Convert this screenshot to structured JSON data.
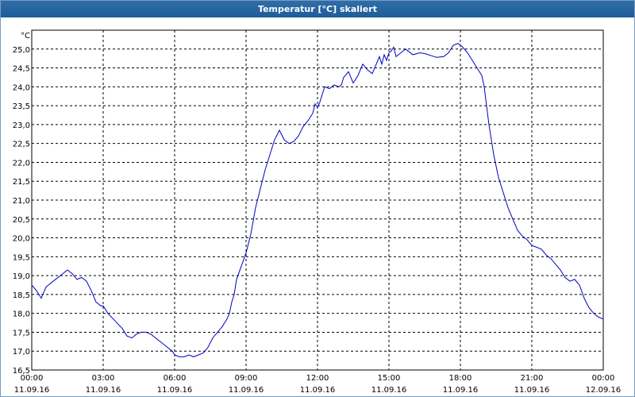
{
  "window": {
    "title": "Temperatur [°C] skaliert"
  },
  "chart_data": {
    "type": "line",
    "title": "Temperatur [°C] skaliert",
    "ylabel": "°C",
    "xlabel": "",
    "x_unit": "hours",
    "xlim": [
      0,
      24
    ],
    "ylim": [
      16.5,
      25.5
    ],
    "grid": true,
    "line_color": "#0000c0",
    "yticks": [
      "25,0",
      "24,5",
      "24,0",
      "23,5",
      "23,0",
      "22,5",
      "22,0",
      "21,5",
      "21,0",
      "20,5",
      "20,0",
      "19,5",
      "19,0",
      "18,5",
      "18,0",
      "17,5",
      "17,0",
      "16,5"
    ],
    "ytick_values": [
      25.0,
      24.5,
      24.0,
      23.5,
      23.0,
      22.5,
      22.0,
      21.5,
      21.0,
      20.5,
      20.0,
      19.5,
      19.0,
      18.5,
      18.0,
      17.5,
      17.0,
      16.5
    ],
    "xticks": [
      {
        "h": 0,
        "time": "00:00",
        "date": "11.09.16"
      },
      {
        "h": 3,
        "time": "03:00",
        "date": "11.09.16"
      },
      {
        "h": 6,
        "time": "06:00",
        "date": "11.09.16"
      },
      {
        "h": 9,
        "time": "09:00",
        "date": "11.09.16"
      },
      {
        "h": 12,
        "time": "12:00",
        "date": "11.09.16"
      },
      {
        "h": 15,
        "time": "15:00",
        "date": "11.09.16"
      },
      {
        "h": 18,
        "time": "18:00",
        "date": "11.09.16"
      },
      {
        "h": 21,
        "time": "21:00",
        "date": "11.09.16"
      },
      {
        "h": 24,
        "time": "00:00",
        "date": "12.09.16"
      }
    ],
    "series": [
      {
        "points": [
          [
            0.0,
            18.75
          ],
          [
            0.2,
            18.6
          ],
          [
            0.4,
            18.4
          ],
          [
            0.6,
            18.7
          ],
          [
            0.9,
            18.85
          ],
          [
            1.2,
            19.0
          ],
          [
            1.5,
            19.15
          ],
          [
            1.7,
            19.05
          ],
          [
            1.9,
            18.9
          ],
          [
            2.1,
            18.95
          ],
          [
            2.3,
            18.85
          ],
          [
            2.5,
            18.6
          ],
          [
            2.7,
            18.3
          ],
          [
            2.9,
            18.2
          ],
          [
            3.0,
            18.2
          ],
          [
            3.2,
            18.0
          ],
          [
            3.5,
            17.8
          ],
          [
            3.8,
            17.6
          ],
          [
            4.0,
            17.4
          ],
          [
            4.2,
            17.35
          ],
          [
            4.4,
            17.45
          ],
          [
            4.6,
            17.5
          ],
          [
            4.8,
            17.5
          ],
          [
            5.0,
            17.45
          ],
          [
            5.3,
            17.3
          ],
          [
            5.6,
            17.15
          ],
          [
            5.9,
            17.0
          ],
          [
            6.0,
            16.9
          ],
          [
            6.2,
            16.85
          ],
          [
            6.4,
            16.85
          ],
          [
            6.6,
            16.9
          ],
          [
            6.8,
            16.85
          ],
          [
            7.0,
            16.9
          ],
          [
            7.2,
            16.95
          ],
          [
            7.4,
            17.1
          ],
          [
            7.6,
            17.35
          ],
          [
            7.8,
            17.5
          ],
          [
            8.0,
            17.65
          ],
          [
            8.2,
            17.85
          ],
          [
            8.3,
            18.0
          ],
          [
            8.4,
            18.3
          ],
          [
            8.5,
            18.5
          ],
          [
            8.6,
            18.9
          ],
          [
            8.8,
            19.25
          ],
          [
            9.0,
            19.6
          ],
          [
            9.2,
            20.1
          ],
          [
            9.4,
            20.8
          ],
          [
            9.6,
            21.3
          ],
          [
            9.8,
            21.8
          ],
          [
            10.0,
            22.2
          ],
          [
            10.2,
            22.6
          ],
          [
            10.4,
            22.85
          ],
          [
            10.6,
            22.6
          ],
          [
            10.8,
            22.5
          ],
          [
            11.0,
            22.55
          ],
          [
            11.2,
            22.7
          ],
          [
            11.4,
            22.95
          ],
          [
            11.6,
            23.1
          ],
          [
            11.8,
            23.3
          ],
          [
            11.9,
            23.55
          ],
          [
            12.0,
            23.45
          ],
          [
            12.1,
            23.6
          ],
          [
            12.3,
            24.0
          ],
          [
            12.5,
            23.95
          ],
          [
            12.7,
            24.05
          ],
          [
            12.9,
            24.0
          ],
          [
            13.0,
            24.05
          ],
          [
            13.1,
            24.25
          ],
          [
            13.3,
            24.4
          ],
          [
            13.5,
            24.1
          ],
          [
            13.7,
            24.3
          ],
          [
            13.9,
            24.6
          ],
          [
            14.1,
            24.45
          ],
          [
            14.3,
            24.35
          ],
          [
            14.5,
            24.65
          ],
          [
            14.6,
            24.8
          ],
          [
            14.7,
            24.6
          ],
          [
            14.8,
            24.85
          ],
          [
            14.9,
            24.7
          ],
          [
            15.0,
            24.9
          ],
          [
            15.1,
            24.95
          ],
          [
            15.2,
            25.05
          ],
          [
            15.3,
            24.8
          ],
          [
            15.5,
            24.9
          ],
          [
            15.7,
            25.0
          ],
          [
            15.8,
            24.95
          ],
          [
            16.0,
            24.85
          ],
          [
            16.3,
            24.9
          ],
          [
            16.5,
            24.88
          ],
          [
            16.8,
            24.82
          ],
          [
            17.0,
            24.78
          ],
          [
            17.3,
            24.8
          ],
          [
            17.5,
            24.9
          ],
          [
            17.7,
            25.1
          ],
          [
            17.9,
            25.15
          ],
          [
            18.0,
            25.1
          ],
          [
            18.1,
            25.05
          ],
          [
            18.3,
            24.9
          ],
          [
            18.5,
            24.7
          ],
          [
            18.7,
            24.5
          ],
          [
            18.9,
            24.3
          ],
          [
            19.0,
            24.0
          ],
          [
            19.2,
            23.0
          ],
          [
            19.4,
            22.2
          ],
          [
            19.6,
            21.6
          ],
          [
            19.8,
            21.2
          ],
          [
            20.0,
            20.8
          ],
          [
            20.2,
            20.5
          ],
          [
            20.4,
            20.2
          ],
          [
            20.6,
            20.05
          ],
          [
            20.8,
            19.95
          ],
          [
            21.0,
            19.8
          ],
          [
            21.2,
            19.75
          ],
          [
            21.4,
            19.7
          ],
          [
            21.6,
            19.55
          ],
          [
            21.8,
            19.45
          ],
          [
            22.0,
            19.3
          ],
          [
            22.2,
            19.15
          ],
          [
            22.4,
            18.95
          ],
          [
            22.6,
            18.85
          ],
          [
            22.8,
            18.9
          ],
          [
            23.0,
            18.75
          ],
          [
            23.2,
            18.4
          ],
          [
            23.4,
            18.15
          ],
          [
            23.6,
            18.0
          ],
          [
            23.8,
            17.9
          ],
          [
            24.0,
            17.85
          ]
        ]
      }
    ]
  }
}
